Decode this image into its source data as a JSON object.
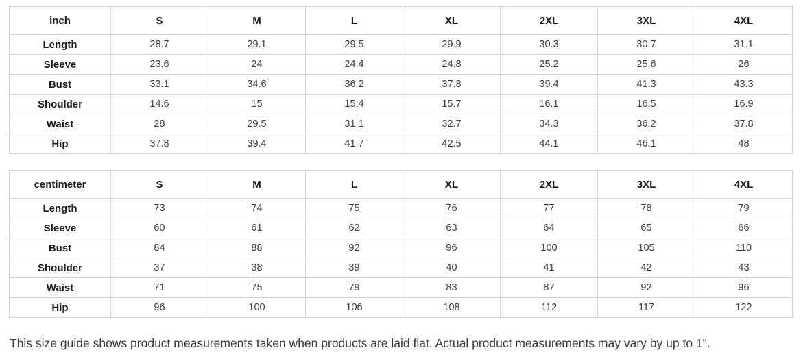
{
  "note": "This size guide shows product measurements taken when products are laid flat. Actual product measurements may vary by up to 1\".",
  "tables": [
    {
      "unit_label": "inch",
      "columns": [
        "S",
        "M",
        "L",
        "XL",
        "2XL",
        "3XL",
        "4XL"
      ],
      "rows": [
        {
          "label": "Length",
          "values": [
            "28.7",
            "29.1",
            "29.5",
            "29.9",
            "30.3",
            "30.7",
            "31.1"
          ]
        },
        {
          "label": "Sleeve",
          "values": [
            "23.6",
            "24",
            "24.4",
            "24.8",
            "25.2",
            "25.6",
            "26"
          ]
        },
        {
          "label": "Bust",
          "values": [
            "33.1",
            "34.6",
            "36.2",
            "37.8",
            "39.4",
            "41.3",
            "43.3"
          ]
        },
        {
          "label": "Shoulder",
          "values": [
            "14.6",
            "15",
            "15.4",
            "15.7",
            "16.1",
            "16.5",
            "16.9"
          ]
        },
        {
          "label": "Waist",
          "values": [
            "28",
            "29.5",
            "31.1",
            "32.7",
            "34.3",
            "36.2",
            "37.8"
          ]
        },
        {
          "label": "Hip",
          "values": [
            "37.8",
            "39.4",
            "41.7",
            "42.5",
            "44.1",
            "46.1",
            "48"
          ]
        }
      ]
    },
    {
      "unit_label": "centimeter",
      "columns": [
        "S",
        "M",
        "L",
        "XL",
        "2XL",
        "3XL",
        "4XL"
      ],
      "rows": [
        {
          "label": "Length",
          "values": [
            "73",
            "74",
            "75",
            "76",
            "77",
            "78",
            "79"
          ]
        },
        {
          "label": "Sleeve",
          "values": [
            "60",
            "61",
            "62",
            "63",
            "64",
            "65",
            "66"
          ]
        },
        {
          "label": "Bust",
          "values": [
            "84",
            "88",
            "92",
            "96",
            "100",
            "105",
            "110"
          ]
        },
        {
          "label": "Shoulder",
          "values": [
            "37",
            "38",
            "39",
            "40",
            "41",
            "42",
            "43"
          ]
        },
        {
          "label": "Waist",
          "values": [
            "71",
            "75",
            "79",
            "83",
            "87",
            "92",
            "96"
          ]
        },
        {
          "label": "Hip",
          "values": [
            "96",
            "100",
            "106",
            "108",
            "112",
            "117",
            "122"
          ]
        }
      ]
    }
  ]
}
